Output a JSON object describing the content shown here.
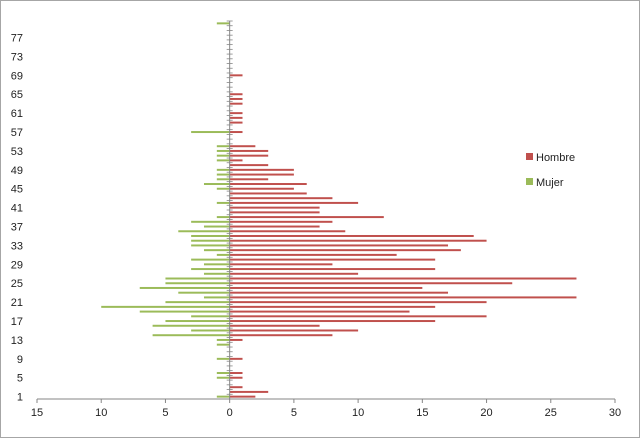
{
  "chart_data": {
    "type": "bar",
    "orientation": "horizontal",
    "subtype": "population-pyramid",
    "title": "",
    "xlabel": "",
    "ylabel": "",
    "xlim": [
      -15,
      30
    ],
    "x_ticks": [
      -15,
      -10,
      -5,
      0,
      5,
      10,
      15,
      20,
      25,
      30
    ],
    "x_tick_labels": [
      "15",
      "10",
      "5",
      "0",
      "5",
      "10",
      "15",
      "20",
      "25",
      "30"
    ],
    "y_ticks": [
      1,
      5,
      9,
      13,
      17,
      21,
      25,
      29,
      33,
      37,
      41,
      45,
      49,
      53,
      57,
      61,
      65,
      69,
      73,
      77
    ],
    "y_tick_labels": [
      "1",
      "5",
      "9",
      "13",
      "17",
      "21",
      "25",
      "29",
      "33",
      "37",
      "41",
      "45",
      "49",
      "53",
      "57",
      "61",
      "65",
      "69",
      "73",
      "77"
    ],
    "ages": [
      1,
      2,
      3,
      4,
      5,
      6,
      7,
      8,
      9,
      10,
      11,
      12,
      13,
      14,
      15,
      16,
      17,
      18,
      19,
      20,
      21,
      22,
      23,
      24,
      25,
      26,
      27,
      28,
      29,
      30,
      31,
      32,
      33,
      34,
      35,
      36,
      37,
      38,
      39,
      40,
      41,
      42,
      43,
      44,
      45,
      46,
      47,
      48,
      49,
      50,
      51,
      52,
      53,
      54,
      55,
      56,
      57,
      58,
      59,
      60,
      61,
      62,
      63,
      64,
      65,
      66,
      67,
      68,
      69,
      70,
      71,
      72,
      73,
      74,
      75,
      76,
      77,
      78,
      79,
      80
    ],
    "grid": false,
    "legend_position": "right",
    "series": [
      {
        "name": "Hombre",
        "color": "#c0504d",
        "values": [
          2,
          3,
          1,
          0,
          1,
          1,
          0,
          0,
          1,
          0,
          0,
          0,
          1,
          8,
          10,
          7,
          16,
          20,
          14,
          16,
          20,
          27,
          17,
          15,
          22,
          27,
          10,
          16,
          8,
          16,
          13,
          18,
          17,
          20,
          19,
          9,
          7,
          8,
          12,
          7,
          7,
          10,
          8,
          6,
          5,
          6,
          3,
          5,
          5,
          3,
          1,
          3,
          3,
          2,
          0,
          0,
          1,
          0,
          1,
          1,
          1,
          0,
          1,
          1,
          1,
          0,
          0,
          0,
          1,
          0,
          0,
          0,
          0,
          0,
          0,
          0,
          0,
          0,
          0,
          0
        ]
      },
      {
        "name": "Mujer",
        "color": "#9bbb59",
        "values": [
          1,
          0,
          0,
          0,
          1,
          1,
          0,
          0,
          1,
          0,
          0,
          1,
          1,
          6,
          3,
          6,
          5,
          3,
          7,
          10,
          5,
          2,
          4,
          7,
          5,
          5,
          2,
          3,
          2,
          3,
          1,
          2,
          3,
          3,
          3,
          4,
          2,
          3,
          1,
          0,
          0,
          1,
          0,
          0,
          1,
          2,
          1,
          1,
          1,
          0,
          1,
          1,
          1,
          1,
          0,
          0,
          3,
          0,
          0,
          0,
          0,
          0,
          0,
          0,
          0,
          0,
          0,
          0,
          0,
          0,
          0,
          0,
          0,
          0,
          0,
          0,
          0,
          0,
          0,
          1
        ]
      }
    ]
  }
}
